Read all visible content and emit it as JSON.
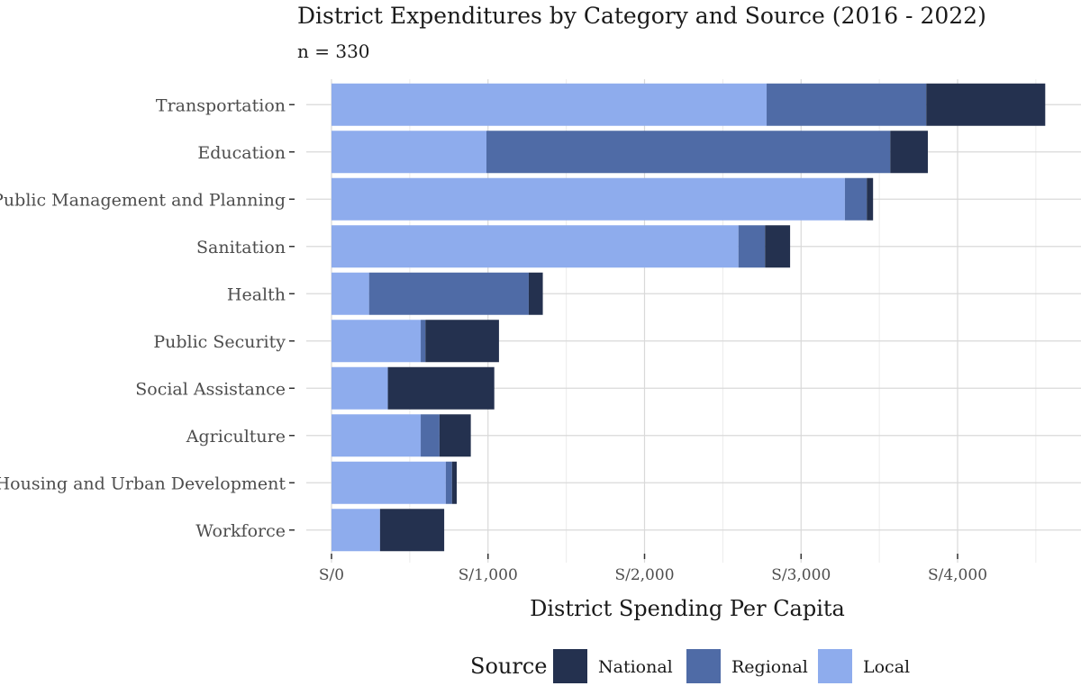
{
  "chart_data": {
    "type": "bar",
    "orientation": "horizontal",
    "stacked": true,
    "title": "District Expenditures by Category and Source (2016 - 2022)",
    "subtitle": "n = 330",
    "xlabel": "District Spending Per Capita",
    "ylabel": "",
    "xlim": [
      0,
      4650
    ],
    "x_ticks": [
      0,
      1000,
      2000,
      3000,
      4000
    ],
    "x_tick_labels": [
      "S/0",
      "S/1,000",
      "S/2,000",
      "S/3,000",
      "S/4,000"
    ],
    "categories": [
      "Transportation",
      "Education",
      "Public Management and Planning",
      "Sanitation",
      "Health",
      "Public Security",
      "Social Assistance",
      "Agriculture",
      "Housing and Urban Development",
      "Workforce"
    ],
    "series": [
      {
        "name": "Local",
        "color": "#8eaced",
        "values": [
          2780,
          990,
          3280,
          2600,
          240,
          570,
          360,
          570,
          730,
          310
        ]
      },
      {
        "name": "Regional",
        "color": "#4f6ba6",
        "values": [
          1020,
          2580,
          140,
          170,
          1020,
          30,
          0,
          120,
          40,
          0
        ]
      },
      {
        "name": "National",
        "color": "#24314f",
        "values": [
          760,
          240,
          40,
          160,
          90,
          470,
          680,
          200,
          30,
          410
        ]
      }
    ],
    "legend": {
      "title": "Source",
      "position": "bottom",
      "order": [
        "National",
        "Regional",
        "Local"
      ]
    },
    "grid": true
  }
}
